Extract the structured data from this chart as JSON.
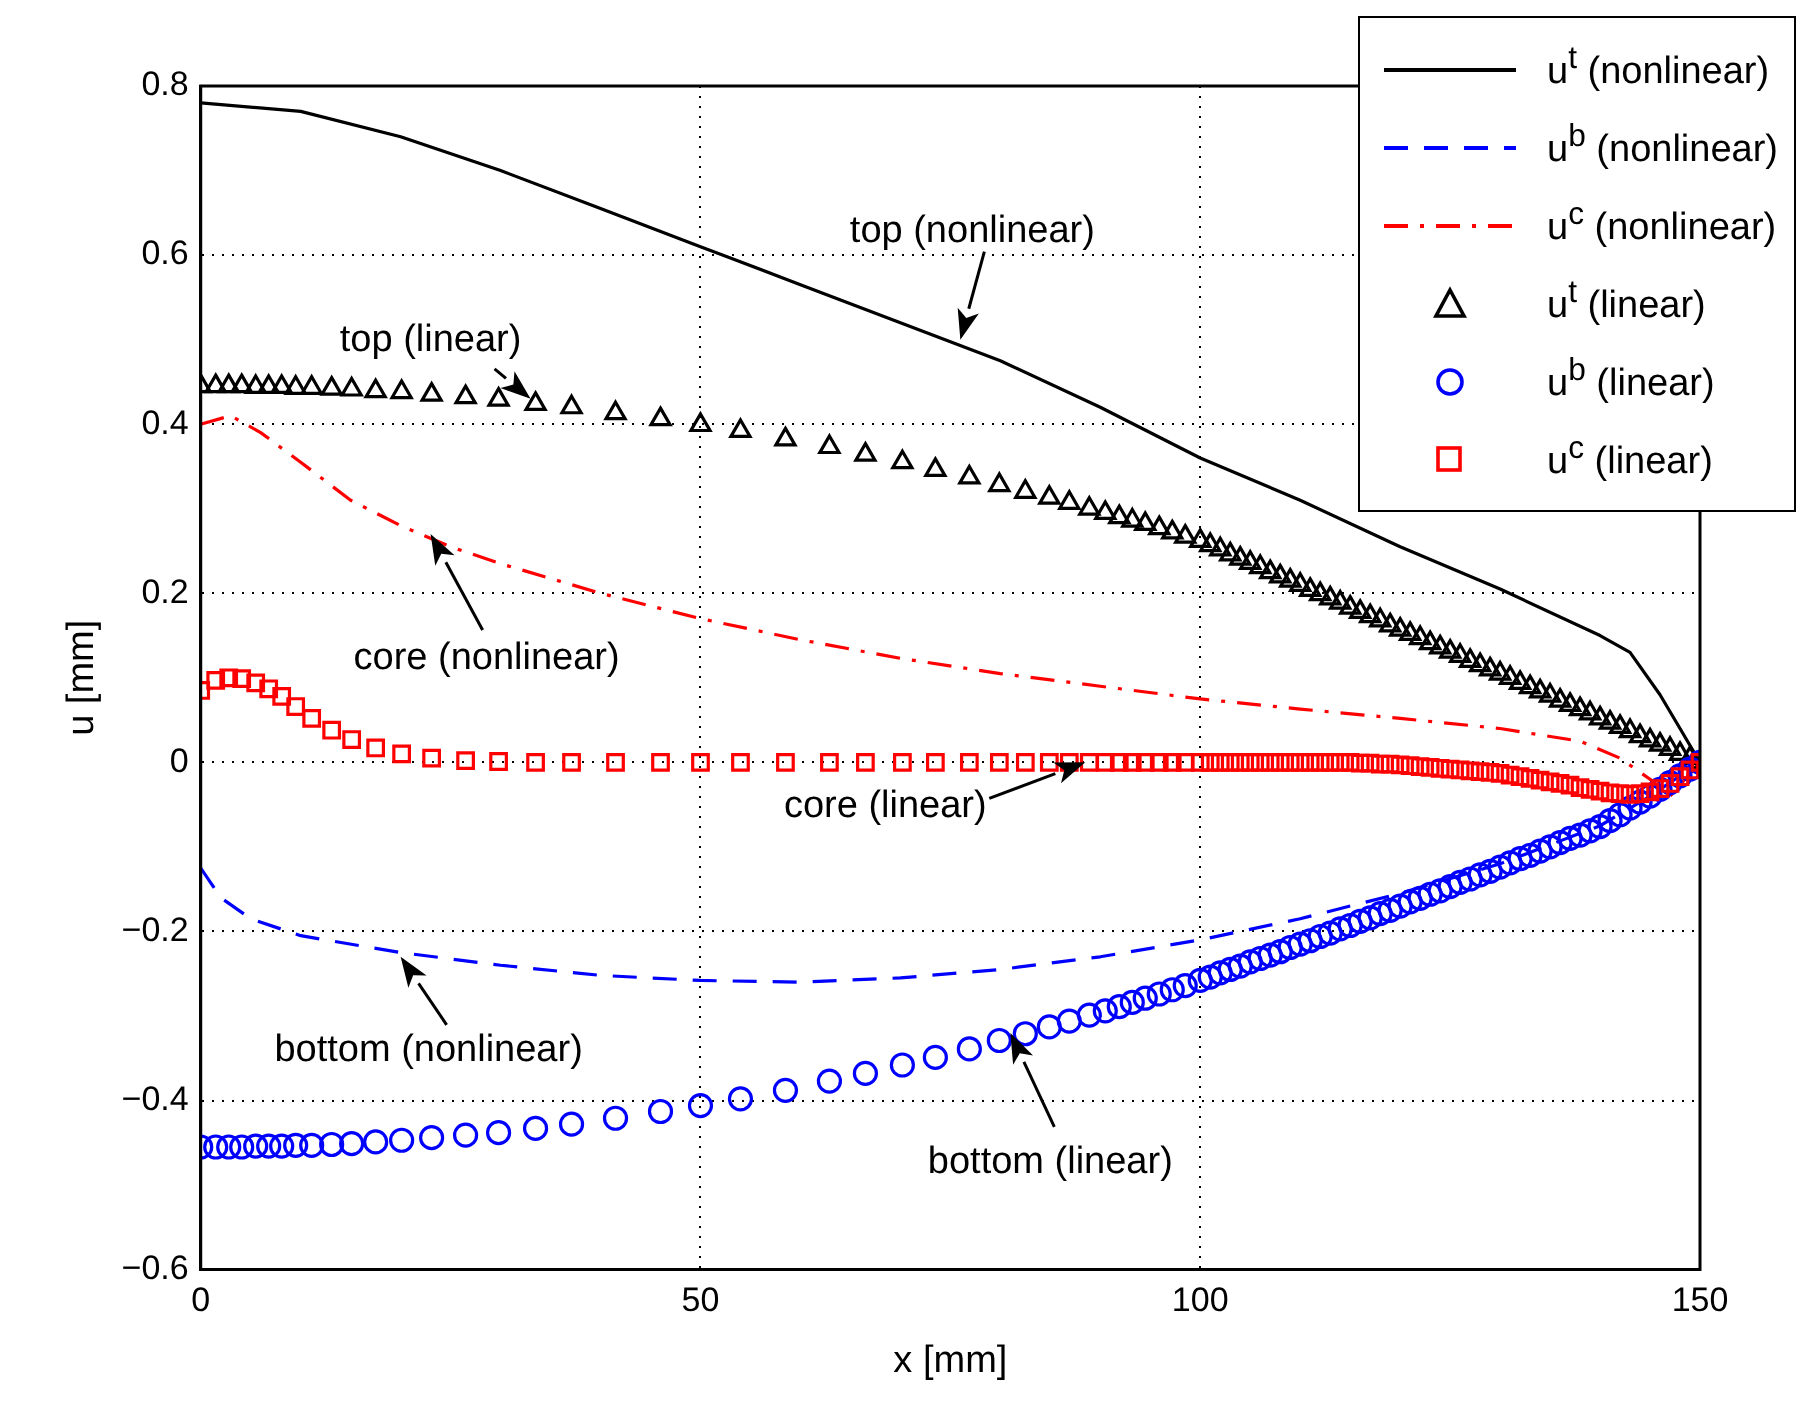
{
  "chart_data": {
    "type": "line",
    "xlabel": "x [mm]",
    "ylabel": "u [mm]",
    "xlim": [
      0,
      150
    ],
    "ylim": [
      -0.6,
      0.8
    ],
    "xticks": [
      0,
      50,
      100,
      150
    ],
    "yticks": [
      -0.6,
      -0.4,
      -0.2,
      0,
      0.2,
      0.4,
      0.6,
      0.8
    ],
    "grid": true,
    "legend": "top right",
    "x": [
      0,
      1.5,
      2.8,
      4.1,
      5.5,
      6.8,
      8.1,
      9.5,
      11.1,
      13.1,
      15.1,
      17.5,
      20.1,
      23.1,
      26.5,
      29.8,
      33.5,
      37.1,
      41.5,
      46,
      50,
      54,
      58.5,
      62.9,
      66.5,
      70.2,
      73.5,
      76.9,
      79.9,
      82.5,
      84.9,
      86.9,
      88.9,
      90.5,
      91.9,
      93.2,
      94.5,
      95.9,
      97.2,
      98.5,
      100,
      101,
      102,
      103,
      104,
      105,
      106,
      107,
      108,
      109,
      110,
      111,
      112,
      113,
      114,
      115,
      116,
      117,
      118,
      119,
      120,
      121,
      122,
      123,
      124,
      125,
      126,
      127,
      128,
      129,
      130,
      131,
      132,
      133,
      134,
      135,
      136,
      137,
      138,
      139,
      140,
      141,
      142,
      143,
      144,
      145,
      146,
      147,
      148,
      149,
      150
    ],
    "series": [
      {
        "name": "u$^{t}$ (nonlinear)",
        "color": "#000000",
        "line_style": "solid",
        "marker": "none",
        "x": [
          0,
          10,
          20,
          30,
          40,
          50,
          60,
          70,
          80,
          90,
          100,
          110,
          120,
          130,
          140,
          143,
          146,
          148,
          150
        ],
        "values": [
          0.78,
          0.77,
          0.74,
          0.7,
          0.655,
          0.61,
          0.565,
          0.52,
          0.475,
          0.42,
          0.36,
          0.31,
          0.255,
          0.205,
          0.15,
          0.13,
          0.08,
          0.04,
          0
        ]
      },
      {
        "name": "u$^{b}$ (nonlinear)",
        "color": "#0000ff",
        "line_style": "dashed",
        "marker": "none",
        "x": [
          0,
          2,
          5,
          10,
          20,
          30,
          40,
          50,
          60,
          70,
          80,
          90,
          100,
          110,
          120,
          130,
          140,
          145,
          150
        ],
        "values": [
          -0.125,
          -0.16,
          -0.185,
          -0.205,
          -0.225,
          -0.24,
          -0.252,
          -0.258,
          -0.26,
          -0.255,
          -0.245,
          -0.23,
          -0.21,
          -0.185,
          -0.155,
          -0.12,
          -0.075,
          -0.04,
          0
        ]
      },
      {
        "name": "u$^{c}$ (nonlinear)",
        "color": "#ff0000",
        "line_style": "dashdot",
        "marker": "none",
        "x": [
          0,
          3,
          6,
          10,
          15,
          20,
          25,
          30,
          40,
          50,
          60,
          70,
          80,
          90,
          100,
          110,
          120,
          130,
          138,
          142,
          145,
          147,
          150
        ],
        "values": [
          0.4,
          0.41,
          0.39,
          0.355,
          0.31,
          0.28,
          0.255,
          0.235,
          0.2,
          0.17,
          0.145,
          0.123,
          0.105,
          0.09,
          0.075,
          0.063,
          0.052,
          0.04,
          0.025,
          0.005,
          -0.02,
          -0.04,
          0
        ]
      },
      {
        "name": "u$^{t}$ (linear)",
        "type": "scatter",
        "color": "#000000",
        "marker": "triangle",
        "values": [
          0.445,
          0.445,
          0.445,
          0.445,
          0.444,
          0.444,
          0.444,
          0.443,
          0.443,
          0.442,
          0.441,
          0.439,
          0.438,
          0.435,
          0.432,
          0.429,
          0.424,
          0.42,
          0.413,
          0.406,
          0.399,
          0.392,
          0.382,
          0.373,
          0.364,
          0.355,
          0.346,
          0.337,
          0.328,
          0.32,
          0.313,
          0.307,
          0.3,
          0.295,
          0.29,
          0.286,
          0.282,
          0.277,
          0.272,
          0.267,
          0.262,
          0.257,
          0.252,
          0.246,
          0.241,
          0.236,
          0.231,
          0.225,
          0.22,
          0.215,
          0.21,
          0.204,
          0.199,
          0.194,
          0.189,
          0.183,
          0.178,
          0.173,
          0.168,
          0.162,
          0.157,
          0.152,
          0.147,
          0.141,
          0.136,
          0.131,
          0.126,
          0.12,
          0.115,
          0.11,
          0.105,
          0.1,
          0.094,
          0.089,
          0.084,
          0.079,
          0.073,
          0.068,
          0.063,
          0.058,
          0.052,
          0.047,
          0.042,
          0.037,
          0.031,
          0.026,
          0.021,
          0.016,
          0.01,
          0.005,
          0
        ]
      },
      {
        "name": "u$^{b}$ (linear)",
        "type": "scatter",
        "color": "#0000ff",
        "marker": "circle",
        "values": [
          -0.455,
          -0.455,
          -0.455,
          -0.455,
          -0.454,
          -0.454,
          -0.454,
          -0.453,
          -0.453,
          -0.452,
          -0.451,
          -0.449,
          -0.447,
          -0.444,
          -0.441,
          -0.438,
          -0.433,
          -0.428,
          -0.421,
          -0.413,
          -0.406,
          -0.398,
          -0.388,
          -0.377,
          -0.368,
          -0.358,
          -0.349,
          -0.339,
          -0.329,
          -0.321,
          -0.313,
          -0.306,
          -0.299,
          -0.294,
          -0.289,
          -0.284,
          -0.279,
          -0.274,
          -0.269,
          -0.264,
          -0.258,
          -0.254,
          -0.249,
          -0.245,
          -0.241,
          -0.236,
          -0.232,
          -0.228,
          -0.224,
          -0.219,
          -0.215,
          -0.211,
          -0.206,
          -0.202,
          -0.197,
          -0.193,
          -0.188,
          -0.184,
          -0.179,
          -0.175,
          -0.17,
          -0.165,
          -0.161,
          -0.156,
          -0.152,
          -0.147,
          -0.142,
          -0.138,
          -0.133,
          -0.129,
          -0.124,
          -0.119,
          -0.114,
          -0.11,
          -0.105,
          -0.1,
          -0.095,
          -0.09,
          -0.086,
          -0.081,
          -0.076,
          -0.069,
          -0.062,
          -0.054,
          -0.047,
          -0.04,
          -0.032,
          -0.024,
          -0.016,
          -0.008,
          0
        ]
      },
      {
        "name": "u$^{c}$ (linear)",
        "type": "scatter",
        "color": "#ff0000",
        "marker": "square",
        "values": [
          0.085,
          0.097,
          0.1,
          0.099,
          0.094,
          0.087,
          0.078,
          0.066,
          0.052,
          0.038,
          0.027,
          0.017,
          0.01,
          0.005,
          0.002,
          0.001,
          0,
          0,
          0,
          0,
          0,
          0,
          0,
          0,
          0,
          0,
          0,
          0,
          0,
          0,
          0,
          0,
          0,
          0,
          0,
          0,
          0,
          0,
          0,
          0,
          0,
          0,
          0,
          0,
          0,
          0,
          0,
          0,
          0,
          0,
          0,
          0,
          0,
          0,
          0,
          0,
          -0.001,
          -0.001,
          -0.002,
          -0.002,
          -0.003,
          -0.004,
          -0.005,
          -0.006,
          -0.007,
          -0.008,
          -0.009,
          -0.01,
          -0.011,
          -0.012,
          -0.013,
          -0.015,
          -0.017,
          -0.019,
          -0.021,
          -0.023,
          -0.025,
          -0.027,
          -0.03,
          -0.032,
          -0.034,
          -0.036,
          -0.037,
          -0.038,
          -0.037,
          -0.035,
          -0.031,
          -0.025,
          -0.017,
          -0.009,
          0
        ]
      }
    ],
    "annotations": [
      {
        "text": "top (nonlinear)",
        "x": 76,
        "y": 0.5
      },
      {
        "text": "top (linear)",
        "x": 33,
        "y": 0.43
      },
      {
        "text": "core (nonlinear)",
        "x": 23,
        "y": 0.27
      },
      {
        "text": "core (linear)",
        "x": 88.5,
        "y": 0
      },
      {
        "text": "bottom (nonlinear)",
        "x": 20,
        "y": -0.23
      },
      {
        "text": "bottom (linear)",
        "x": 81,
        "y": -0.32
      }
    ]
  }
}
